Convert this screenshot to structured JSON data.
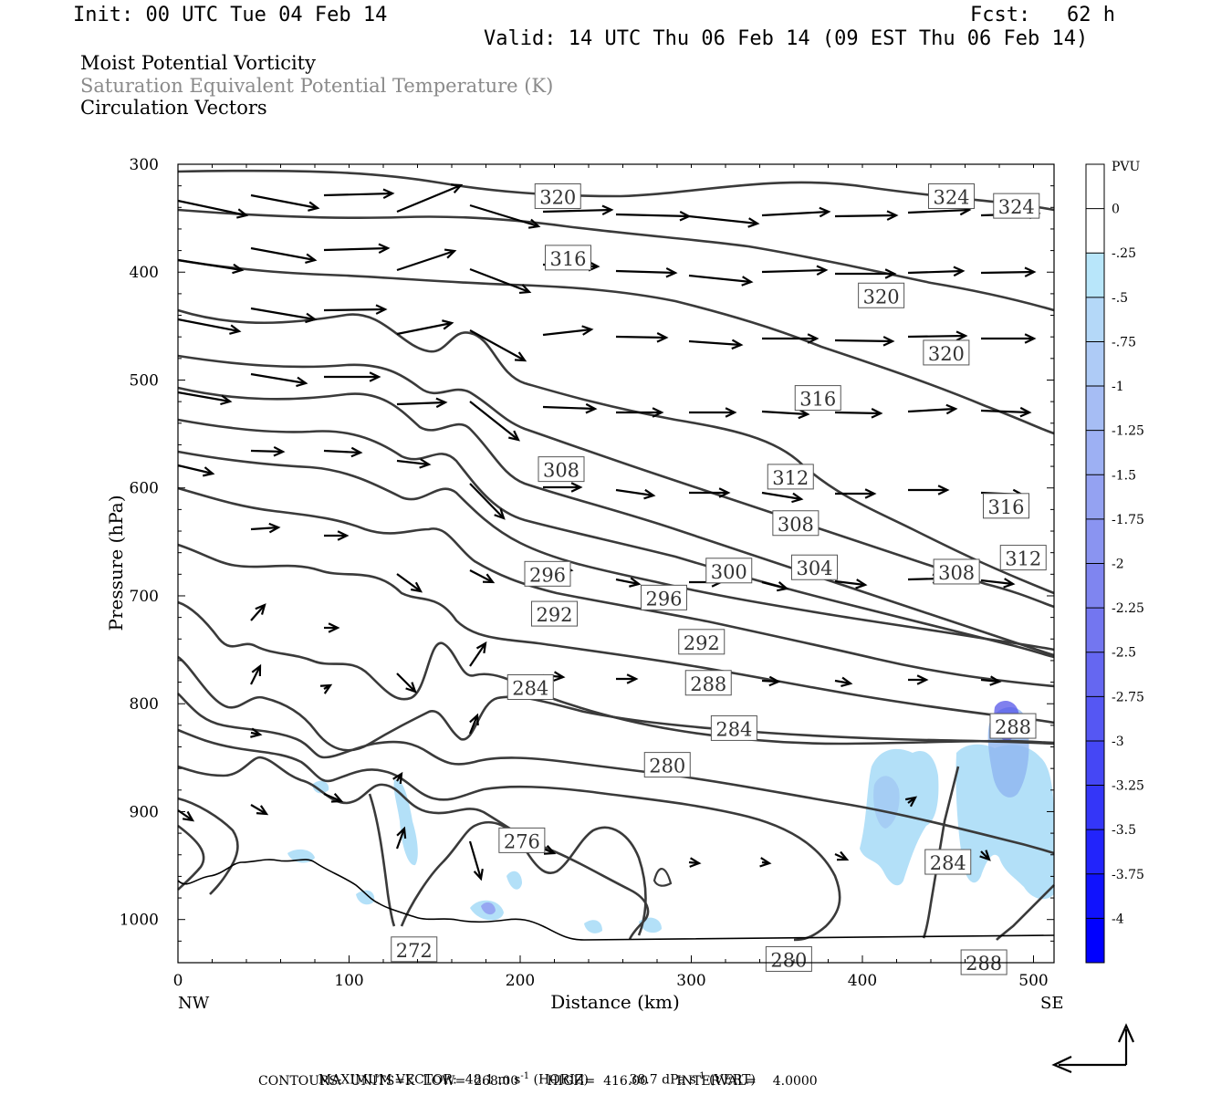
{
  "header": {
    "init": "Init: 00 UTC Tue 04 Feb 14",
    "fcst": "Fcst:   62 h",
    "valid": "Valid: 14 UTC Thu 06 Feb 14 (09 EST Thu 06 Feb 14)"
  },
  "titles": {
    "line1": "Moist Potential Vorticity",
    "line2": "Saturation Equivalent Potential Temperature (K)",
    "line3": "Circulation Vectors"
  },
  "footer": {
    "max_vector_label": "MAXIMUM VECTOR:",
    "max_horiz": "48.1 m s",
    "horiz_unit": "(HORIZ)",
    "max_vert": "38.7 dPa s",
    "vert_unit": "(VERT)",
    "sup": "-1",
    "contours": "CONTOURS:  UNITS=K  LOW=  268.00       HIGH=  416.00       INTERVAL=    4.0000"
  },
  "colors": {
    "contour": "#3a3a3a",
    "pv_light": "#b3e0f8",
    "pv_mid": "#8fb5f0",
    "pv_dark": "#5555e8",
    "pv_darkest": "#0000ff"
  },
  "chart_data": {
    "type": "cross-section",
    "xlabel": "Distance (km)",
    "ylabel": "Pressure (hPa)",
    "xlim": [
      0,
      512
    ],
    "ylim": [
      1040,
      300
    ],
    "x_ticks": [
      "0",
      "100",
      "200",
      "300",
      "400",
      "500"
    ],
    "y_ticks": [
      "300",
      "400",
      "500",
      "600",
      "700",
      "800",
      "900",
      "1000"
    ],
    "x_end_labels": {
      "left": "NW",
      "right": "SE"
    },
    "colorbar": {
      "unit": "PVU",
      "levels": [
        "0",
        "-.25",
        "-.5",
        "-.75",
        "-1",
        "-1.25",
        "-1.5",
        "-1.75",
        "-2",
        "-2.25",
        "-2.5",
        "-2.75",
        "-3",
        "-3.25",
        "-3.5",
        "-3.75",
        "-4"
      ],
      "colors": [
        "#ffffff",
        "#ffffff",
        "#b8e6fa",
        "#b4d8f8",
        "#aecbf6",
        "#a6bdf4",
        "#9db0f3",
        "#94a2f2",
        "#8a94f1",
        "#7f85f0",
        "#7376f0",
        "#6567f1",
        "#5557f3",
        "#4547f5",
        "#3436f8",
        "#2224fb",
        "#1012fd",
        "#0000ff"
      ]
    },
    "contour_labels": [
      {
        "text": "320",
        "x": 222,
        "p": 330
      },
      {
        "text": "324",
        "x": 452,
        "p": 330
      },
      {
        "text": "324",
        "x": 490,
        "p": 339
      },
      {
        "text": "316",
        "x": 228,
        "p": 387
      },
      {
        "text": "320",
        "x": 411,
        "p": 422
      },
      {
        "text": "320",
        "x": 449,
        "p": 475
      },
      {
        "text": "316",
        "x": 374,
        "p": 517
      },
      {
        "text": "308",
        "x": 224,
        "p": 583
      },
      {
        "text": "312",
        "x": 358,
        "p": 590
      },
      {
        "text": "316",
        "x": 484,
        "p": 617
      },
      {
        "text": "308",
        "x": 361,
        "p": 633
      },
      {
        "text": "312",
        "x": 494,
        "p": 665
      },
      {
        "text": "296",
        "x": 216,
        "p": 680
      },
      {
        "text": "300",
        "x": 322,
        "p": 677
      },
      {
        "text": "304",
        "x": 372,
        "p": 674
      },
      {
        "text": "308",
        "x": 455,
        "p": 678
      },
      {
        "text": "296",
        "x": 284,
        "p": 702
      },
      {
        "text": "292",
        "x": 220,
        "p": 717
      },
      {
        "text": "292",
        "x": 306,
        "p": 743
      },
      {
        "text": "284",
        "x": 206,
        "p": 785
      },
      {
        "text": "288",
        "x": 310,
        "p": 781
      },
      {
        "text": "284",
        "x": 325,
        "p": 823
      },
      {
        "text": "288",
        "x": 488,
        "p": 821
      },
      {
        "text": "280",
        "x": 286,
        "p": 857
      },
      {
        "text": "276",
        "x": 201,
        "p": 927
      },
      {
        "text": "284",
        "x": 450,
        "p": 947
      },
      {
        "text": "272",
        "x": 138,
        "p": 1028
      },
      {
        "text": "280",
        "x": 357,
        "p": 1037
      },
      {
        "text": "288",
        "x": 471,
        "p": 1040
      }
    ]
  }
}
